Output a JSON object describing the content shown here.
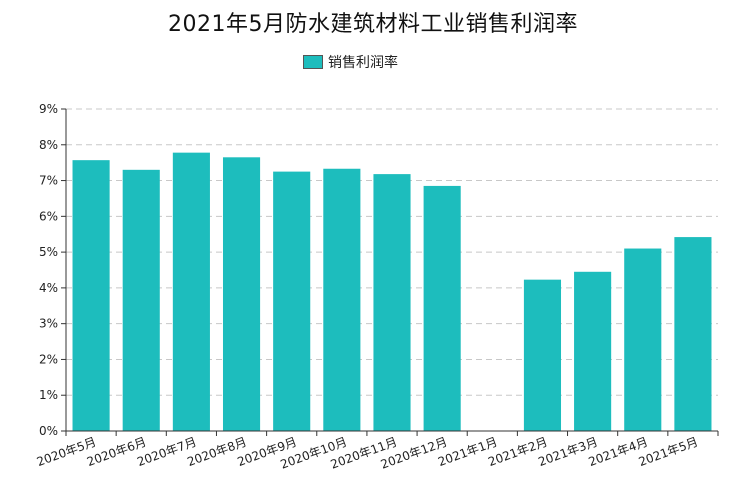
{
  "title": "2021年5月防水建筑材料工业销售利润率",
  "legend": {
    "label": "销售利润率"
  },
  "colors": {
    "bar": "#1dbdbd",
    "axis": "#333333",
    "grid": "#c8c8c8"
  },
  "chart_data": {
    "type": "bar",
    "title": "2021年5月防水建筑材料工业销售利润率",
    "xlabel": "",
    "ylabel": "",
    "categories": [
      "2020年5月",
      "2020年6月",
      "2020年7月",
      "2020年8月",
      "2020年9月",
      "2020年10月",
      "2020年11月",
      "2020年12月",
      "2021年1月",
      "2021年2月",
      "2021年3月",
      "2021年4月",
      "2021年5月"
    ],
    "series": [
      {
        "name": "销售利润率",
        "values": [
          7.57,
          7.3,
          7.78,
          7.65,
          7.25,
          7.33,
          7.18,
          6.85,
          null,
          4.23,
          4.45,
          5.1,
          5.42
        ]
      }
    ],
    "ylim": [
      0,
      9
    ],
    "yticks": [
      "0%",
      "1%",
      "2%",
      "3%",
      "4%",
      "5%",
      "6%",
      "7%",
      "8%",
      "9%"
    ],
    "grid": "horizontal dashed",
    "legend_position": "top-center"
  }
}
